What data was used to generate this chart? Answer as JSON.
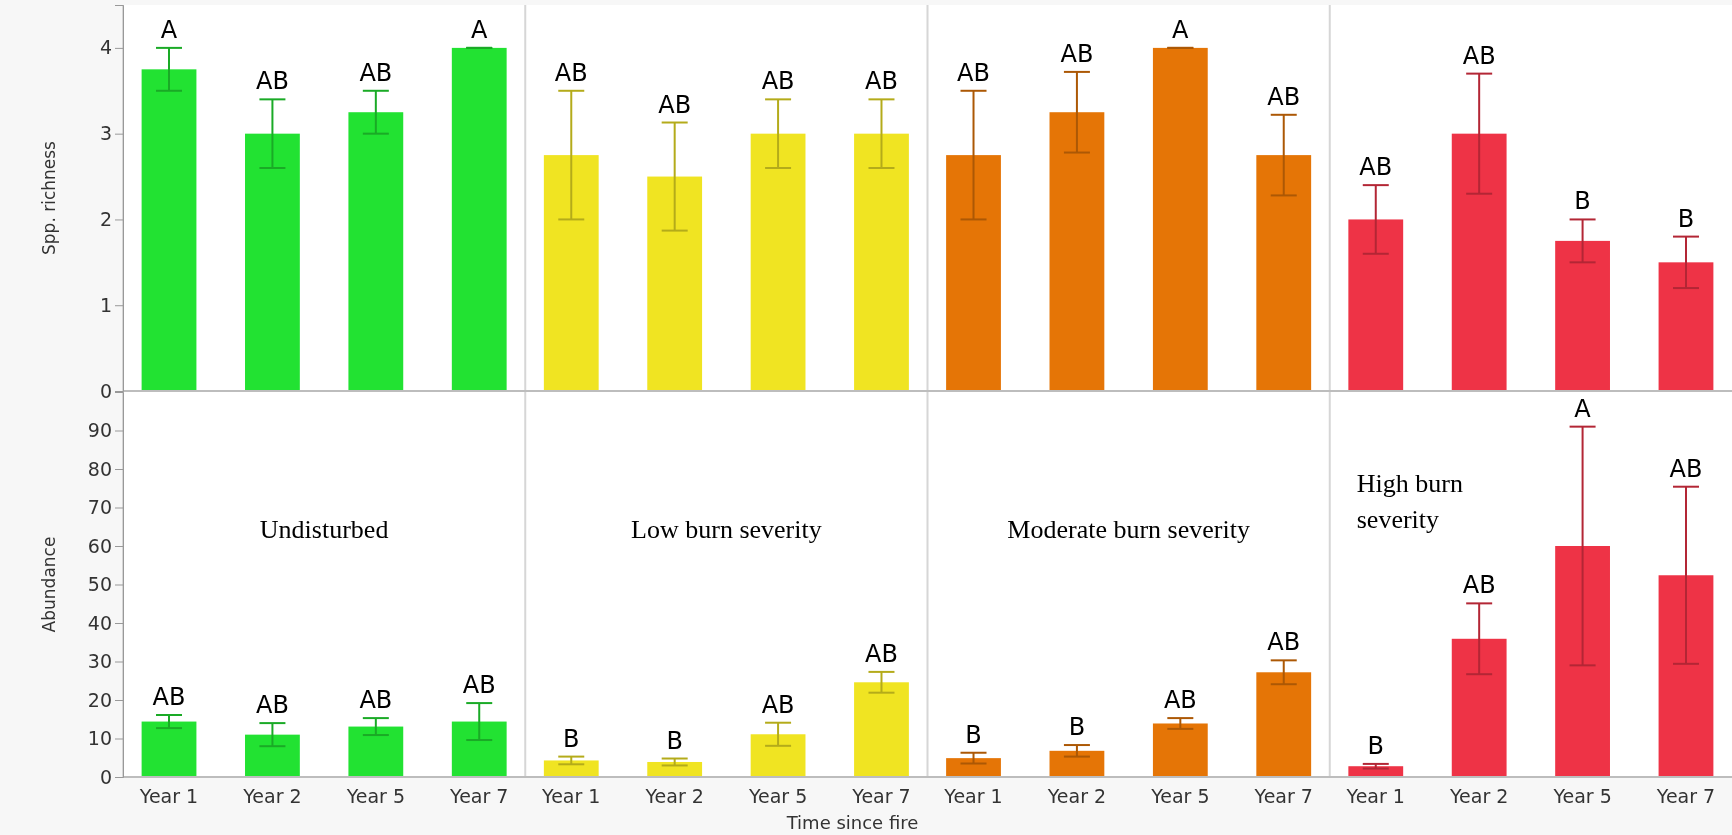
{
  "chart_data": [
    {
      "type": "bar",
      "ylabel": "Spp. richness",
      "categories": [
        null,
        null,
        null,
        null,
        null,
        null,
        null,
        null,
        null,
        null,
        null,
        null,
        null,
        null,
        null,
        null
      ],
      "values": [
        3.75,
        3.0,
        3.25,
        4.0,
        2.75,
        2.5,
        3.0,
        3.0,
        2.75,
        3.25,
        4.0,
        2.75,
        2.0,
        3.0,
        1.75,
        1.5
      ],
      "errors": [
        0.25,
        0.4,
        0.25,
        0,
        0.75,
        0.63,
        0.4,
        0.4,
        0.75,
        0.47,
        0,
        0.47,
        0.4,
        0.7,
        0.25,
        0.3
      ],
      "colors": [
        "#22e232",
        "#22e232",
        "#22e232",
        "#22e232",
        "#f0e422",
        "#f0e422",
        "#f0e422",
        "#f0e422",
        "#e57506",
        "#e57506",
        "#e57506",
        "#e57506",
        "#ee3346",
        "#ee3346",
        "#ee3346",
        "#ee3346"
      ],
      "ylim": [
        0,
        4.5
      ],
      "yticks": [
        0,
        1,
        2,
        3,
        4
      ],
      "annotations": [
        "A",
        "AB",
        "AB",
        "A",
        "AB",
        "AB",
        "AB",
        "AB",
        "AB",
        "AB",
        "A",
        "AB",
        "AB",
        "AB",
        "B",
        "B"
      ]
    },
    {
      "type": "bar",
      "ylabel": "Abundance",
      "xlabel": "Time since fire",
      "categories": [
        "Year 1",
        "Year 2",
        "Year 5",
        "Year 7",
        "Year 1",
        "Year 2",
        "Year 5",
        "Year 7",
        "Year 1",
        "Year 2",
        "Year 5",
        "Year 7",
        "Year 1",
        "Year 2",
        "Year 5",
        "Year 7"
      ],
      "values": [
        14.4,
        11.0,
        13.1,
        14.4,
        4.3,
        3.9,
        11.1,
        24.6,
        4.9,
        6.8,
        13.9,
        27.2,
        2.8,
        35.9,
        60.0,
        52.4
      ],
      "errors": [
        1.7,
        3,
        2.2,
        4.8,
        1,
        0.9,
        3,
        2.7,
        1.4,
        1.5,
        1.4,
        3.1,
        0.6,
        9.2,
        31,
        23
      ],
      "colors": [
        "#22e232",
        "#22e232",
        "#22e232",
        "#22e232",
        "#f0e422",
        "#f0e422",
        "#f0e422",
        "#f0e422",
        "#e57506",
        "#e57506",
        "#e57506",
        "#e57506",
        "#ee3346",
        "#ee3346",
        "#ee3346",
        "#ee3346"
      ],
      "ylim": [
        0,
        100
      ],
      "yticks": [
        0,
        10,
        20,
        30,
        40,
        50,
        60,
        70,
        80,
        90
      ],
      "annotations": [
        "AB",
        "AB",
        "AB",
        "AB",
        "B",
        "B",
        "AB",
        "AB",
        "B",
        "B",
        "AB",
        "AB",
        "B",
        "AB",
        "A",
        "AB",
        "Undisturbed",
        "Low burn severity",
        "Moderate burn severity",
        "High burn\nseverity"
      ]
    }
  ]
}
